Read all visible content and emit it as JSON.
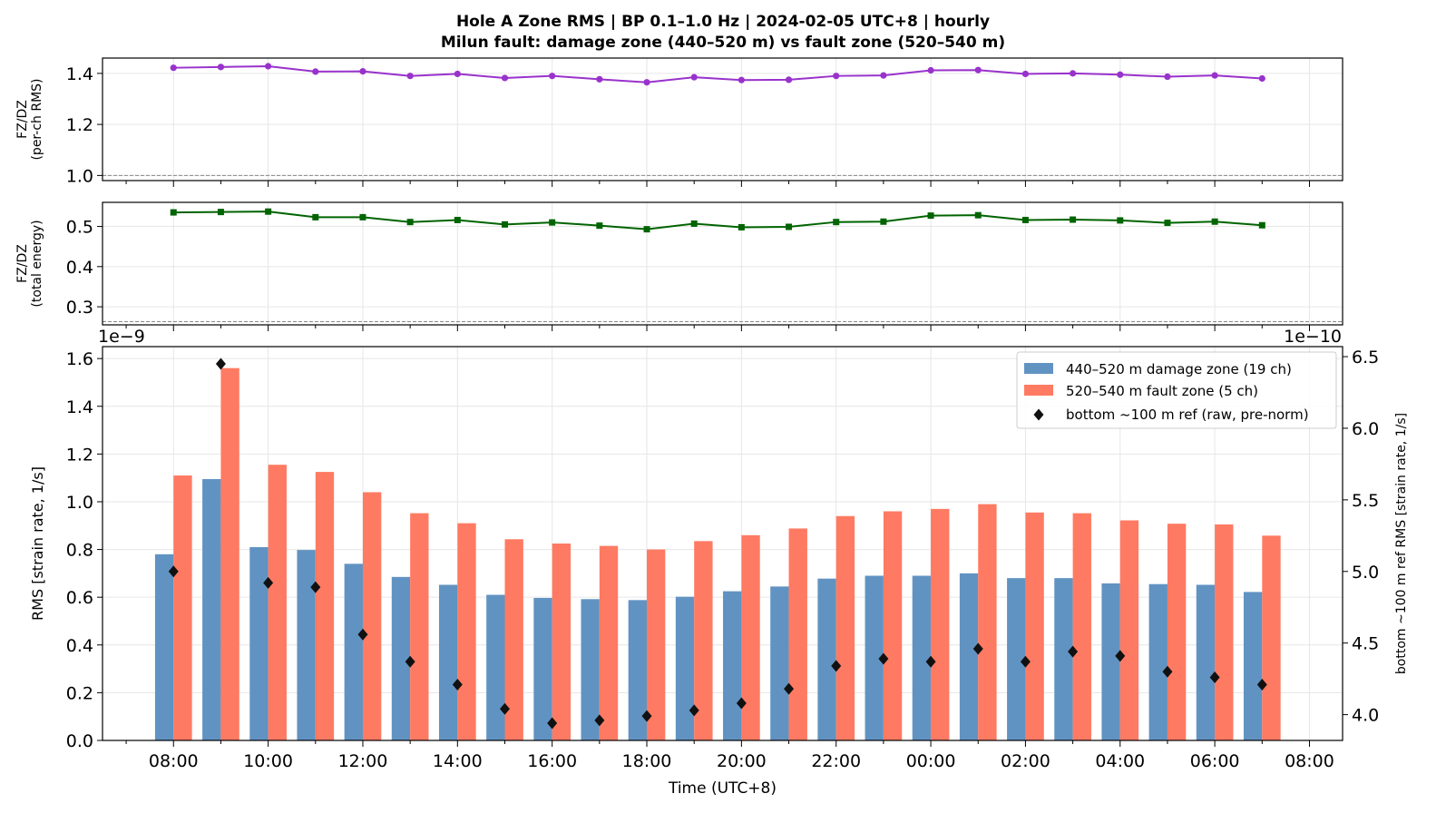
{
  "figure": {
    "title_line1": "Hole A Zone RMS  |  BP 0.1–1.0 Hz  |  2024-02-05 UTC+8  |  hourly",
    "title_line2": "Milun fault: damage zone (440–520 m) vs fault zone (520–540 m)"
  },
  "chart_data": [
    {
      "type": "line",
      "id": "ratio-per-ch",
      "ylabel_line1": "FZ/DZ",
      "ylabel_line2": "(per-ch RMS)",
      "ylim": [
        0.98,
        1.46
      ],
      "yticks": [
        "1.0",
        "1.2",
        "1.4"
      ],
      "ytick_values": [
        1.0,
        1.2,
        1.4
      ],
      "reference_line": 1.0,
      "color": "#9932CC",
      "marker": "circle",
      "values": [
        1.422,
        1.425,
        1.428,
        1.407,
        1.408,
        1.39,
        1.398,
        1.382,
        1.39,
        1.377,
        1.365,
        1.385,
        1.374,
        1.375,
        1.39,
        1.392,
        1.412,
        1.413,
        1.398,
        1.4,
        1.395,
        1.387,
        1.392,
        1.38
      ],
      "grid": true
    },
    {
      "type": "line",
      "id": "ratio-total-energy",
      "ylabel_line1": "FZ/DZ",
      "ylabel_line2": "(total energy)",
      "ylim": [
        0.255,
        0.56
      ],
      "yticks": [
        "0.3",
        "0.4",
        "0.5"
      ],
      "ytick_values": [
        0.3,
        0.4,
        0.5
      ],
      "reference_line": 0.263,
      "color": "#006400",
      "marker": "square",
      "values": [
        0.535,
        0.536,
        0.537,
        0.523,
        0.523,
        0.511,
        0.516,
        0.505,
        0.51,
        0.502,
        0.493,
        0.507,
        0.498,
        0.499,
        0.511,
        0.512,
        0.527,
        0.528,
        0.516,
        0.517,
        0.515,
        0.509,
        0.512,
        0.503
      ],
      "grid": true
    },
    {
      "type": "bar",
      "id": "zone-rms",
      "ylabel": "RMS  [strain rate, 1/s]",
      "ylabel_right": "bottom ~100 m ref RMS  [strain rate, 1/s]",
      "xlabel": "Time (UTC+8)",
      "offset_left": "1e−9",
      "offset_right": "1e−10",
      "ylim": [
        0,
        1.65
      ],
      "yticks": [
        "0.0",
        "0.2",
        "0.4",
        "0.6",
        "0.8",
        "1.0",
        "1.2",
        "1.4",
        "1.6"
      ],
      "ytick_values": [
        0,
        0.2,
        0.4,
        0.6,
        0.8,
        1.0,
        1.2,
        1.4,
        1.6
      ],
      "ylim_right": [
        3.82,
        6.57
      ],
      "yticks_right": [
        "4.0",
        "4.5",
        "5.0",
        "5.5",
        "6.0",
        "6.5"
      ],
      "ytick_values_right": [
        4.0,
        4.5,
        5.0,
        5.5,
        6.0,
        6.5
      ],
      "xlim_hours": [
        -1.5,
        24.7
      ],
      "xtick_labels": [
        "08:00",
        "10:00",
        "12:00",
        "14:00",
        "16:00",
        "18:00",
        "20:00",
        "22:00",
        "00:00",
        "02:00",
        "04:00",
        "06:00",
        "08:00"
      ],
      "legend_position": "top-right",
      "series": [
        {
          "name": "440–520 m  damage zone (19 ch)",
          "color": "#6193C2",
          "values": [
            0.78,
            1.095,
            0.81,
            0.798,
            0.74,
            0.685,
            0.652,
            0.61,
            0.597,
            0.592,
            0.588,
            0.602,
            0.625,
            0.645,
            0.678,
            0.69,
            0.69,
            0.7,
            0.68,
            0.68,
            0.658,
            0.655,
            0.652,
            0.622
          ]
        },
        {
          "name": "520–540 m  fault zone (5 ch)",
          "color": "#FF7A62",
          "values": [
            1.11,
            1.56,
            1.155,
            1.125,
            1.04,
            0.952,
            0.91,
            0.843,
            0.825,
            0.815,
            0.8,
            0.835,
            0.86,
            0.888,
            0.94,
            0.96,
            0.97,
            0.99,
            0.955,
            0.952,
            0.922,
            0.908,
            0.905,
            0.858
          ]
        },
        {
          "name": "bottom ~100 m ref (raw, pre-norm)",
          "color": "#111111",
          "axis": "right",
          "marker": "diamond",
          "values": [
            5.0,
            6.45,
            4.92,
            4.89,
            4.56,
            4.37,
            4.21,
            4.04,
            3.94,
            3.96,
            3.99,
            4.03,
            4.08,
            4.18,
            4.34,
            4.39,
            4.37,
            4.46,
            4.37,
            4.44,
            4.41,
            4.3,
            4.26,
            4.21
          ]
        }
      ],
      "grid": true
    }
  ]
}
